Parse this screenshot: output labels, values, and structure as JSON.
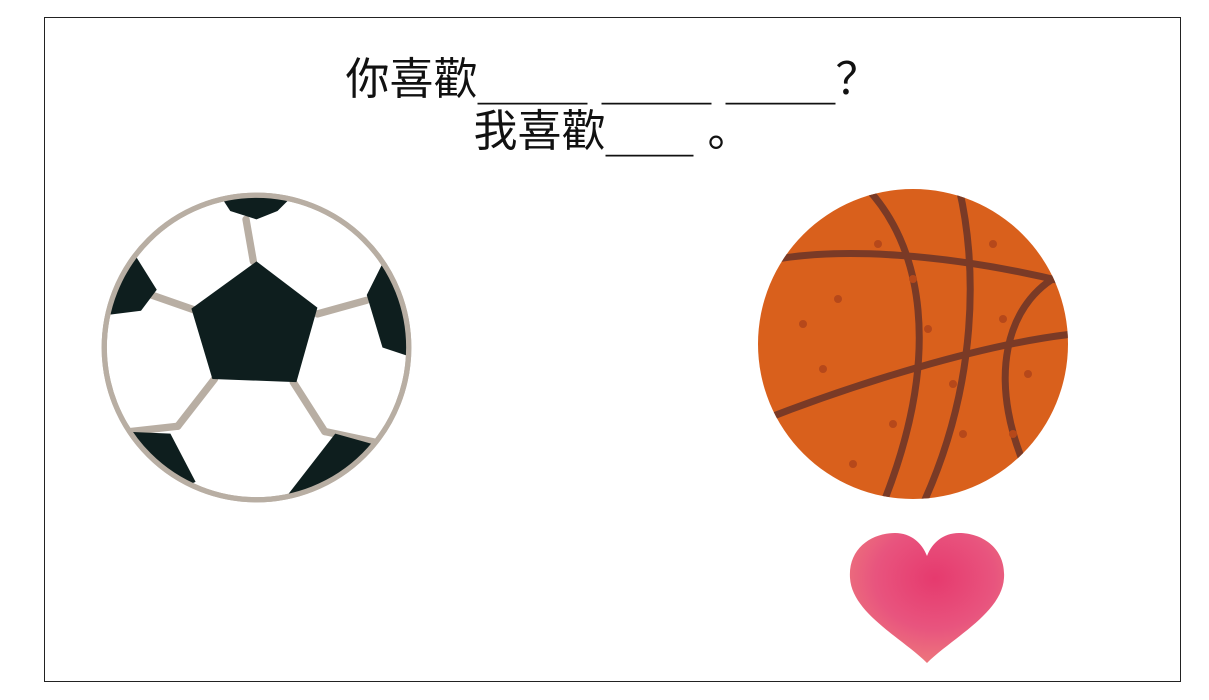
{
  "slide": {
    "question_line": "你喜歡_____ _____ _____？",
    "answer_line": "我喜歡____ 。"
  },
  "images": {
    "soccer_ball": "soccer-ball-illustration",
    "basketball": "basketball-illustration",
    "heart": "heart-illustration"
  },
  "colors": {
    "soccer_black": "#0e1e1e",
    "soccer_seam": "#b8aea3",
    "basketball_orange": "#d9601c",
    "basketball_line": "#7a3a26",
    "heart_pink": "#e8547e"
  }
}
